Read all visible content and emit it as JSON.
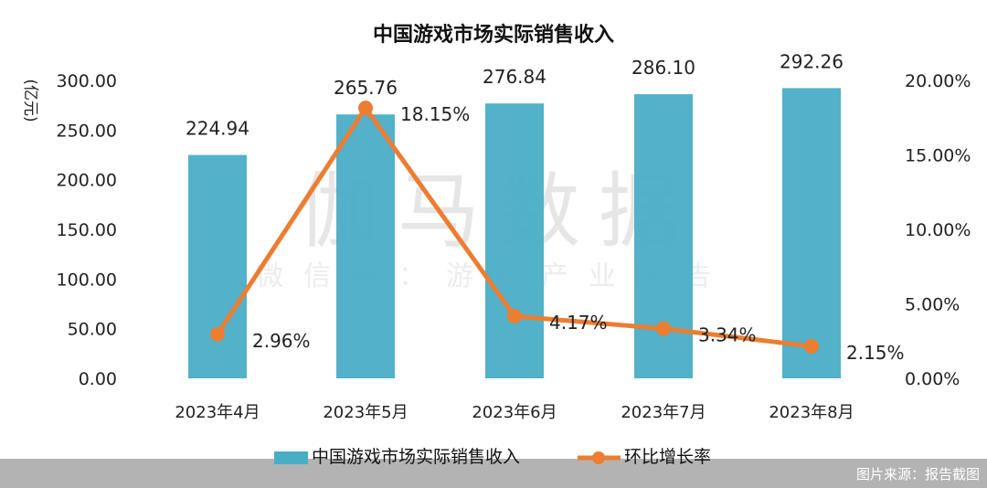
{
  "chart_data": {
    "type": "bar",
    "title": "中国游戏市场实际销售收入",
    "ylabel": "(亿元)",
    "categories": [
      "2023年4月",
      "2023年5月",
      "2023年6月",
      "2023年7月",
      "2023年8月"
    ],
    "series": [
      {
        "name": "中国游戏市场实际销售收入",
        "type": "bar",
        "axis": "left",
        "values": [
          224.94,
          265.76,
          276.84,
          286.1,
          292.26
        ],
        "labels": [
          "224.94",
          "265.76",
          "276.84",
          "286.10",
          "292.26"
        ],
        "color": "#4aadc6"
      },
      {
        "name": "环比增长率",
        "type": "line",
        "axis": "right",
        "values": [
          2.96,
          18.15,
          4.17,
          3.34,
          2.15
        ],
        "labels": [
          "2.96%",
          "18.15%",
          "4.17%",
          "3.34%",
          "2.15%"
        ],
        "color": "#ed7d31"
      }
    ],
    "ylim": [
      0,
      300
    ],
    "yticks": [
      "0.00",
      "50.00",
      "100.00",
      "150.00",
      "200.00",
      "250.00",
      "300.00"
    ],
    "y2lim": [
      0,
      20
    ],
    "y2ticks": [
      "0.00%",
      "5.00%",
      "10.00%",
      "15.00%",
      "20.00%"
    ],
    "legend": "bottom",
    "grid": false
  },
  "watermark": {
    "main": "伽马数据",
    "sub": "微信号：游戏产业报告"
  },
  "footer": {
    "source": "图片来源：报告截图"
  }
}
